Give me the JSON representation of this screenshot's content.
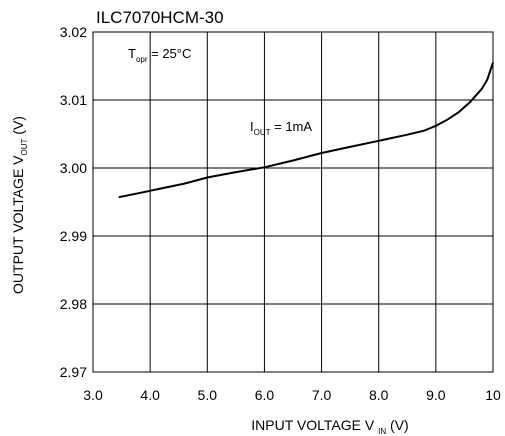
{
  "chart_data": {
    "type": "line",
    "title": "ILC7070HCM-30",
    "xlabel": {
      "main": "INPUT VOLTAGE V",
      "sub": "IN",
      "unit": " (V)"
    },
    "ylabel": {
      "main": "OUTPUT VOLTAGE V",
      "sub": "OUT",
      "unit": " (V)"
    },
    "xlim": [
      3.0,
      10.0
    ],
    "ylim": [
      2.97,
      3.02
    ],
    "x_ticks": [
      "3.0",
      "4.0",
      "5.0",
      "6.0",
      "7.0",
      "8.0",
      "9.0",
      "10"
    ],
    "y_ticks": [
      "2.97",
      "2.98",
      "2.99",
      "3.00",
      "3.01",
      "3.02"
    ],
    "grid": true,
    "annotations": {
      "condition": {
        "main": "T",
        "sub": "opr",
        "rest": " = 25°C"
      },
      "series_label": {
        "main": "I",
        "sub": "OUT",
        "rest": " = 1mA"
      }
    },
    "series": [
      {
        "x": [
          3.45,
          3.8,
          4.2,
          4.6,
          5.0,
          5.5,
          6.0,
          6.5,
          7.0,
          7.5,
          8.0,
          8.5,
          8.8,
          9.0,
          9.2,
          9.4,
          9.6,
          9.8,
          9.9,
          10.0
        ],
        "y": [
          2.9957,
          2.9963,
          2.997,
          2.9977,
          2.9986,
          2.9994,
          3.0001,
          3.0011,
          3.0022,
          3.0031,
          3.004,
          3.0049,
          3.0055,
          3.0062,
          3.0071,
          3.0082,
          3.0097,
          3.0116,
          3.013,
          3.0155
        ]
      }
    ]
  }
}
